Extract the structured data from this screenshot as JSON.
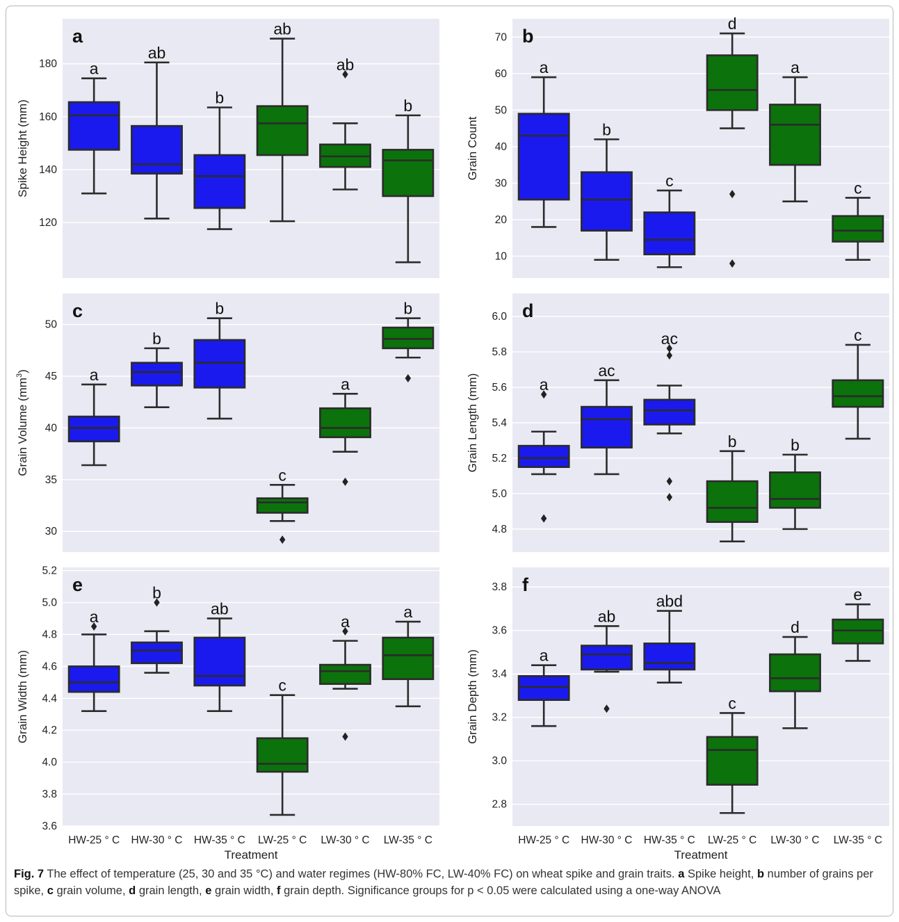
{
  "figure": {
    "colors": {
      "HW": "#1a1aee",
      "LW": "#0c720c",
      "panel_bg": "#e9e9f3",
      "grid": "#ffffff",
      "line": "#2b2b2b"
    },
    "x_axis_label": "Treatment",
    "caption": {
      "fig_label": "Fig. 7",
      "text": "The effect of temperature (25, 30 and 35 °C) and water regimes (HW-80% FC, LW-40% FC) on wheat spike and grain traits.",
      "parts": [
        {
          "letter": "a",
          "text": "Spike height,"
        },
        {
          "letter": "b",
          "text": "number of grains per spike,"
        },
        {
          "letter": "c",
          "text": "grain volume,"
        },
        {
          "letter": "d",
          "text": "grain length,"
        },
        {
          "letter": "e",
          "text": "grain width,"
        },
        {
          "letter": "f",
          "text": "grain depth. Significance groups for p < 0.05 were calculated using a one-way ANOVA"
        }
      ]
    }
  },
  "chart_data": [
    {
      "type": "box",
      "panel": "a",
      "ylabel": "Spike Height (mm)",
      "ylim": [
        99,
        197
      ],
      "yticks": [
        "120",
        "140",
        "160",
        "180"
      ],
      "ytick_values": [
        120,
        140,
        160,
        180
      ],
      "categories": [
        "HW-25 ° C",
        "HW-30 ° C",
        "HW-35 ° C",
        "LW-25 ° C",
        "LW-30 ° C",
        "LW-35 ° C"
      ],
      "groups": [
        "HW",
        "HW",
        "HW",
        "LW",
        "LW",
        "LW"
      ],
      "boxes": [
        {
          "whislo": 131,
          "q1": 147.5,
          "med": 160.5,
          "q3": 165.5,
          "whishi": 174.5,
          "fliers": [],
          "sig": "a"
        },
        {
          "whislo": 121.5,
          "q1": 138.5,
          "med": 142,
          "q3": 156.5,
          "whishi": 180.5,
          "fliers": [],
          "sig": "ab"
        },
        {
          "whislo": 117.5,
          "q1": 125.5,
          "med": 137.5,
          "q3": 145.5,
          "whishi": 163.5,
          "fliers": [],
          "sig": "b"
        },
        {
          "whislo": 120.5,
          "q1": 145.5,
          "med": 157.5,
          "q3": 164,
          "whishi": 189.5,
          "fliers": [],
          "sig": "ab"
        },
        {
          "whislo": 132.5,
          "q1": 141,
          "med": 145,
          "q3": 149.5,
          "whishi": 157.5,
          "fliers": [
            176
          ],
          "sig": "ab"
        },
        {
          "whislo": 105,
          "q1": 130,
          "med": 143.5,
          "q3": 147.5,
          "whishi": 160.5,
          "fliers": [],
          "sig": "b"
        }
      ]
    },
    {
      "type": "box",
      "panel": "b",
      "ylabel": "Grain Count",
      "ylim": [
        4,
        75
      ],
      "yticks": [
        "10",
        "20",
        "30",
        "40",
        "50",
        "60",
        "70"
      ],
      "ytick_values": [
        10,
        20,
        30,
        40,
        50,
        60,
        70
      ],
      "categories": [
        "HW-25 ° C",
        "HW-30 ° C",
        "HW-35 ° C",
        "LW-25 ° C",
        "LW-30 ° C",
        "LW-35 ° C"
      ],
      "groups": [
        "HW",
        "HW",
        "HW",
        "LW",
        "LW",
        "LW"
      ],
      "boxes": [
        {
          "whislo": 18,
          "q1": 25.5,
          "med": 43,
          "q3": 49,
          "whishi": 59,
          "fliers": [],
          "sig": "a"
        },
        {
          "whislo": 9,
          "q1": 17,
          "med": 25.5,
          "q3": 33,
          "whishi": 42,
          "fliers": [],
          "sig": "b"
        },
        {
          "whislo": 7,
          "q1": 10.5,
          "med": 14.5,
          "q3": 22,
          "whishi": 28,
          "fliers": [],
          "sig": "c"
        },
        {
          "whislo": 45,
          "q1": 50,
          "med": 55.5,
          "q3": 65,
          "whishi": 71,
          "fliers": [
            27,
            8
          ],
          "sig": "d"
        },
        {
          "whislo": 25,
          "q1": 35,
          "med": 46,
          "q3": 51.5,
          "whishi": 59,
          "fliers": [],
          "sig": "a"
        },
        {
          "whislo": 9,
          "q1": 14,
          "med": 17,
          "q3": 21,
          "whishi": 26,
          "fliers": [],
          "sig": "c"
        }
      ]
    },
    {
      "type": "box",
      "panel": "c",
      "ylabel": "Grain Volume (mm³)",
      "ylim": [
        28,
        53
      ],
      "yticks": [
        "30",
        "35",
        "40",
        "45",
        "50"
      ],
      "ytick_values": [
        30,
        35,
        40,
        45,
        50
      ],
      "categories": [
        "HW-25 ° C",
        "HW-30 ° C",
        "HW-35 ° C",
        "LW-25 ° C",
        "LW-30 ° C",
        "LW-35 ° C"
      ],
      "groups": [
        "HW",
        "HW",
        "HW",
        "LW",
        "LW",
        "LW"
      ],
      "boxes": [
        {
          "whislo": 36.4,
          "q1": 38.7,
          "med": 40,
          "q3": 41.1,
          "whishi": 44.2,
          "fliers": [],
          "sig": "a"
        },
        {
          "whislo": 42,
          "q1": 44.1,
          "med": 45.4,
          "q3": 46.3,
          "whishi": 47.7,
          "fliers": [],
          "sig": "b"
        },
        {
          "whislo": 40.9,
          "q1": 43.9,
          "med": 46.3,
          "q3": 48.5,
          "whishi": 50.6,
          "fliers": [],
          "sig": "b"
        },
        {
          "whislo": 31,
          "q1": 31.8,
          "med": 32.8,
          "q3": 33.2,
          "whishi": 34.5,
          "fliers": [
            29.2
          ],
          "sig": "c"
        },
        {
          "whislo": 37.7,
          "q1": 39.1,
          "med": 40,
          "q3": 41.9,
          "whishi": 43.3,
          "fliers": [
            34.8
          ],
          "sig": "a"
        },
        {
          "whislo": 46.8,
          "q1": 47.7,
          "med": 48.6,
          "q3": 49.7,
          "whishi": 50.6,
          "fliers": [
            44.8
          ],
          "sig": "b"
        }
      ]
    },
    {
      "type": "box",
      "panel": "d",
      "ylabel": "Grain Length (mm)",
      "ylim": [
        4.67,
        6.13
      ],
      "yticks": [
        "4.8",
        "5.0",
        "5.2",
        "5.4",
        "5.6",
        "5.8",
        "6.0"
      ],
      "ytick_values": [
        4.8,
        5.0,
        5.2,
        5.4,
        5.6,
        5.8,
        6.0
      ],
      "categories": [
        "HW-25 ° C",
        "HW-30 ° C",
        "HW-35 ° C",
        "LW-25 ° C",
        "LW-30 ° C",
        "LW-35 ° C"
      ],
      "groups": [
        "HW",
        "HW",
        "HW",
        "LW",
        "LW",
        "LW"
      ],
      "boxes": [
        {
          "whislo": 5.11,
          "q1": 5.15,
          "med": 5.2,
          "q3": 5.27,
          "whishi": 5.35,
          "fliers": [
            5.56,
            4.86
          ],
          "sig": "a"
        },
        {
          "whislo": 5.11,
          "q1": 5.26,
          "med": 5.42,
          "q3": 5.49,
          "whishi": 5.64,
          "fliers": [],
          "sig": "ac"
        },
        {
          "whislo": 5.34,
          "q1": 5.39,
          "med": 5.47,
          "q3": 5.53,
          "whishi": 5.61,
          "fliers": [
            5.82,
            5.78,
            5.07,
            4.98
          ],
          "sig": "ac"
        },
        {
          "whislo": 4.73,
          "q1": 4.84,
          "med": 4.92,
          "q3": 5.07,
          "whishi": 5.24,
          "fliers": [],
          "sig": "b"
        },
        {
          "whislo": 4.8,
          "q1": 4.92,
          "med": 4.97,
          "q3": 5.12,
          "whishi": 5.22,
          "fliers": [],
          "sig": "b"
        },
        {
          "whislo": 5.31,
          "q1": 5.49,
          "med": 5.55,
          "q3": 5.64,
          "whishi": 5.84,
          "fliers": [],
          "sig": "c"
        }
      ]
    },
    {
      "type": "box",
      "panel": "e",
      "ylabel": "Grain Width (mm)",
      "ylim": [
        3.6,
        5.22
      ],
      "yticks": [
        "3.6",
        "3.8",
        "4.0",
        "4.2",
        "4.4",
        "4.6",
        "4.8",
        "5.0",
        "5.2"
      ],
      "ytick_values": [
        3.6,
        3.8,
        4.0,
        4.2,
        4.4,
        4.6,
        4.8,
        5.0,
        5.2
      ],
      "categories": [
        "HW-25 ° C",
        "HW-30 ° C",
        "HW-35 ° C",
        "LW-25 ° C",
        "LW-30 ° C",
        "LW-35 ° C"
      ],
      "groups": [
        "HW",
        "HW",
        "HW",
        "LW",
        "LW",
        "LW"
      ],
      "boxes": [
        {
          "whislo": 4.32,
          "q1": 4.44,
          "med": 4.5,
          "q3": 4.6,
          "whishi": 4.8,
          "fliers": [
            4.85
          ],
          "sig": "a"
        },
        {
          "whislo": 4.56,
          "q1": 4.62,
          "med": 4.7,
          "q3": 4.75,
          "whishi": 4.82,
          "fliers": [
            5.0
          ],
          "sig": "b"
        },
        {
          "whislo": 4.32,
          "q1": 4.48,
          "med": 4.54,
          "q3": 4.78,
          "whishi": 4.9,
          "fliers": [],
          "sig": "ab"
        },
        {
          "whislo": 3.67,
          "q1": 3.94,
          "med": 3.99,
          "q3": 4.15,
          "whishi": 4.42,
          "fliers": [],
          "sig": "c"
        },
        {
          "whislo": 4.46,
          "q1": 4.49,
          "med": 4.57,
          "q3": 4.61,
          "whishi": 4.76,
          "fliers": [
            4.82,
            4.16
          ],
          "sig": "a"
        },
        {
          "whislo": 4.35,
          "q1": 4.52,
          "med": 4.67,
          "q3": 4.78,
          "whishi": 4.88,
          "fliers": [],
          "sig": "a"
        }
      ]
    },
    {
      "type": "box",
      "panel": "f",
      "ylabel": "Grain Depth (mm)",
      "ylim": [
        2.7,
        3.89
      ],
      "yticks": [
        "2.8",
        "3.0",
        "3.2",
        "3.4",
        "3.6",
        "3.8"
      ],
      "ytick_values": [
        2.8,
        3.0,
        3.2,
        3.4,
        3.6,
        3.8
      ],
      "categories": [
        "HW-25 ° C",
        "HW-30 ° C",
        "HW-35 ° C",
        "LW-25 ° C",
        "LW-30 ° C",
        "LW-35 ° C"
      ],
      "groups": [
        "HW",
        "HW",
        "HW",
        "LW",
        "LW",
        "LW"
      ],
      "boxes": [
        {
          "whislo": 3.16,
          "q1": 3.28,
          "med": 3.34,
          "q3": 3.39,
          "whishi": 3.44,
          "fliers": [],
          "sig": "a"
        },
        {
          "whislo": 3.41,
          "q1": 3.42,
          "med": 3.49,
          "q3": 3.53,
          "whishi": 3.62,
          "fliers": [
            3.24
          ],
          "sig": "ab"
        },
        {
          "whislo": 3.36,
          "q1": 3.42,
          "med": 3.45,
          "q3": 3.54,
          "whishi": 3.69,
          "fliers": [],
          "sig": "abd"
        },
        {
          "whislo": 2.76,
          "q1": 2.89,
          "med": 3.05,
          "q3": 3.11,
          "whishi": 3.22,
          "fliers": [],
          "sig": "c"
        },
        {
          "whislo": 3.15,
          "q1": 3.32,
          "med": 3.38,
          "q3": 3.49,
          "whishi": 3.57,
          "fliers": [],
          "sig": "d"
        },
        {
          "whislo": 3.46,
          "q1": 3.54,
          "med": 3.6,
          "q3": 3.65,
          "whishi": 3.72,
          "fliers": [],
          "sig": "e"
        }
      ]
    }
  ]
}
